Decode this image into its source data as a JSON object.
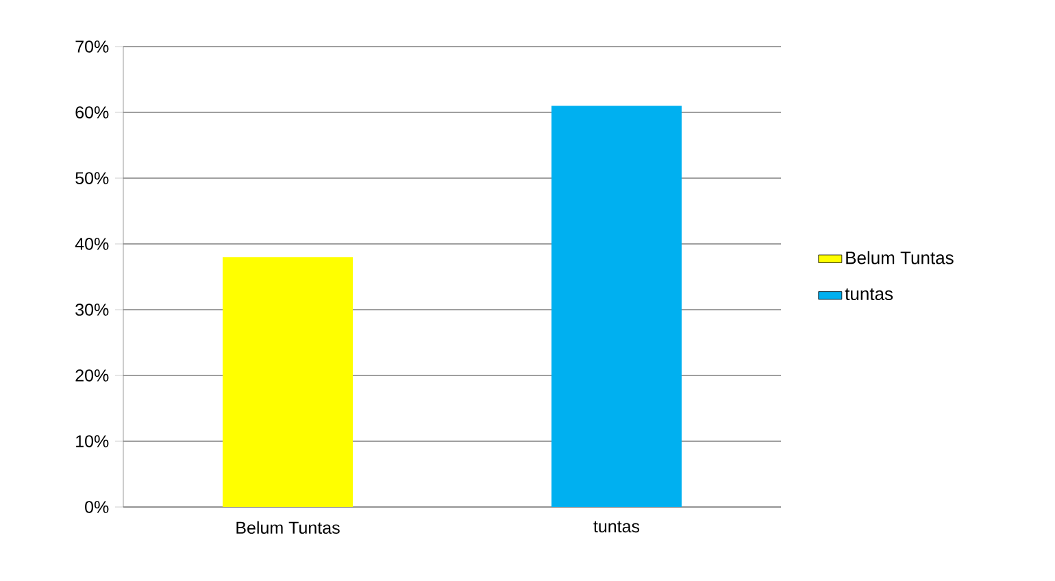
{
  "chart_data": {
    "type": "bar",
    "categories": [
      "Belum Tuntas",
      "tuntas"
    ],
    "series": [
      {
        "name": "Belum Tuntas",
        "color": "#ffff00",
        "values": [
          38,
          null
        ]
      },
      {
        "name": "tuntas",
        "color": "#00b0f0",
        "values": [
          null,
          61
        ]
      }
    ],
    "ylim": [
      0,
      70
    ],
    "yticks": [
      {
        "value": 0,
        "label": "0%"
      },
      {
        "value": 10,
        "label": "10%"
      },
      {
        "value": 20,
        "label": "20%"
      },
      {
        "value": 30,
        "label": "30%"
      },
      {
        "value": 40,
        "label": "40%"
      },
      {
        "value": 50,
        "label": "50%"
      },
      {
        "value": 60,
        "label": "60%"
      },
      {
        "value": 70,
        "label": "70%"
      }
    ],
    "grid": "y",
    "legend": "right"
  }
}
